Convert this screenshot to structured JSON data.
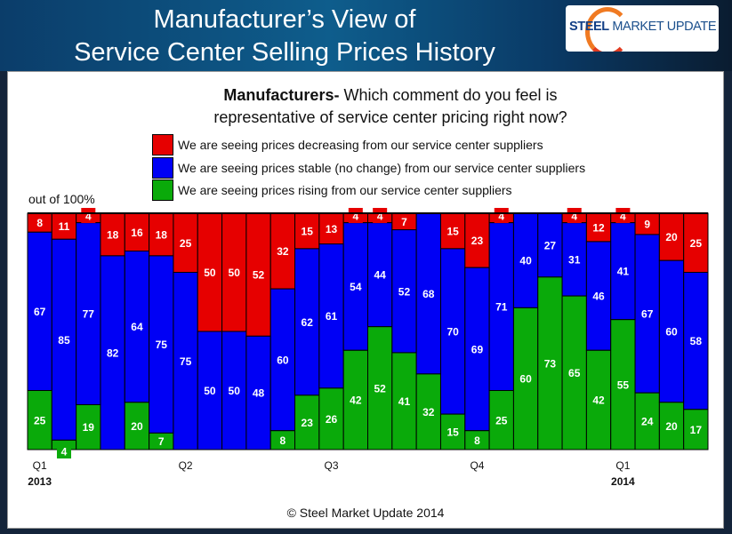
{
  "header": {
    "title_line1": "Manufacturer’s View of",
    "title_line2": "Service Center Selling Prices History",
    "logo_text": "STEEL MARKET UPDATE"
  },
  "chart_data": {
    "type": "bar",
    "stacked": true,
    "title": "Manufacturers- Which comment do you feel is representative of service center pricing right now?",
    "title_bold": "Manufacturers-",
    "title_rest_line1": " Which comment do you feel is",
    "title_line2": "representative of service center pricing right now?",
    "ylabel": "out of 100%",
    "ylim": [
      0,
      100
    ],
    "legend_placement": "top",
    "x_tick_labels": [
      {
        "bar": 1,
        "label": "Q1",
        "year": "2013"
      },
      {
        "bar": 7,
        "label": "Q2"
      },
      {
        "bar": 13,
        "label": "Q3"
      },
      {
        "bar": 19,
        "label": "Q4"
      },
      {
        "bar": 25,
        "label": "Q1",
        "year": "2014"
      }
    ],
    "series": [
      {
        "name": "We are seeing prices decreasing from our service center suppliers",
        "color": "#e60000",
        "values": [
          8,
          11,
          4,
          18,
          16,
          18,
          25,
          50,
          50,
          52,
          32,
          15,
          13,
          4,
          4,
          7,
          0,
          15,
          23,
          4,
          0,
          0,
          4,
          12,
          4,
          9,
          20,
          25
        ]
      },
      {
        "name": "We are seeing prices stable (no change) from our service center suppliers",
        "color": "#0000f5",
        "values": [
          67,
          85,
          77,
          82,
          64,
          75,
          75,
          50,
          50,
          48,
          60,
          62,
          61,
          54,
          44,
          52,
          68,
          70,
          69,
          71,
          40,
          27,
          31,
          46,
          41,
          67,
          60,
          58
        ]
      },
      {
        "name": "We are seeing prices rising from our service center suppliers",
        "color": "#0aaa0a",
        "values": [
          25,
          4,
          19,
          0,
          20,
          7,
          0,
          0,
          0,
          0,
          8,
          23,
          26,
          42,
          52,
          41,
          32,
          15,
          8,
          25,
          60,
          73,
          65,
          42,
          55,
          24,
          20,
          17
        ]
      }
    ]
  },
  "footer": {
    "copyright": "© Steel Market Update 2014"
  }
}
